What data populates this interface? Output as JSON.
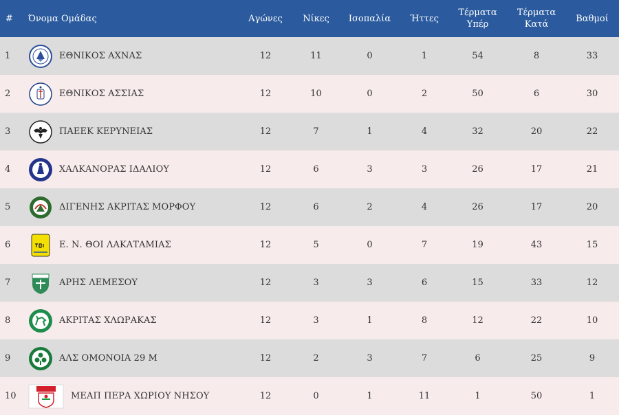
{
  "headers": {
    "rank": "#",
    "team": "Όνομα Ομάδας",
    "played": "Αγώνες",
    "wins": "Νίκες",
    "draws": "Ισοπαλία",
    "losses": "Ήττες",
    "goals_for_line1": "Τέρματα",
    "goals_for_line2": "Υπέρ",
    "goals_against_line1": "Τέρματα",
    "goals_against_line2": "Κατά",
    "points": "Βαθμοί"
  },
  "rows": [
    {
      "rank": "1",
      "team": "ΕΘΝΙΚΟΣ ΑΧΝΑΣ",
      "logo": "ethnikos-achnas-logo",
      "played": "12",
      "wins": "11",
      "draws": "0",
      "losses": "1",
      "gf": "54",
      "ga": "8",
      "pts": "33"
    },
    {
      "rank": "2",
      "team": "ΕΘΝΙΚΟΣ ΑΣΣΙΑΣ",
      "logo": "ethnikos-assias-logo",
      "played": "12",
      "wins": "10",
      "draws": "0",
      "losses": "2",
      "gf": "50",
      "ga": "6",
      "pts": "30"
    },
    {
      "rank": "3",
      "team": "ΠΑΕΕΚ ΚΕΡΥΝΕΙΑΣ",
      "logo": "paeek-logo",
      "played": "12",
      "wins": "7",
      "draws": "1",
      "losses": "4",
      "gf": "32",
      "ga": "20",
      "pts": "22"
    },
    {
      "rank": "4",
      "team": "ΧΑΛΚΑΝΟΡΑΣ ΙΔΑΛΙΟΥ",
      "logo": "chalkanoras-logo",
      "played": "12",
      "wins": "6",
      "draws": "3",
      "losses": "3",
      "gf": "26",
      "ga": "17",
      "pts": "21"
    },
    {
      "rank": "5",
      "team": "ΔΙΓΕΝΗΣ ΑΚΡΙΤΑΣ ΜΟΡΦΟΥ",
      "logo": "digenis-logo",
      "played": "12",
      "wins": "6",
      "draws": "2",
      "losses": "4",
      "gf": "26",
      "ga": "17",
      "pts": "20"
    },
    {
      "rank": "6",
      "team": "Ε. Ν. ΘΟΙ ΛΑΚΑΤΑΜΙΑΣ",
      "logo": "thoi-logo",
      "played": "12",
      "wins": "5",
      "draws": "0",
      "losses": "7",
      "gf": "19",
      "ga": "43",
      "pts": "15"
    },
    {
      "rank": "7",
      "team": "ΑΡΗΣ ΛΕΜΕΣΟΥ",
      "logo": "aris-logo",
      "played": "12",
      "wins": "3",
      "draws": "3",
      "losses": "6",
      "gf": "15",
      "ga": "33",
      "pts": "12"
    },
    {
      "rank": "8",
      "team": "ΑΚΡΙΤΑΣ ΧΛΩΡΑΚΑΣ",
      "logo": "akritas-logo",
      "played": "12",
      "wins": "3",
      "draws": "1",
      "losses": "8",
      "gf": "12",
      "ga": "22",
      "pts": "10"
    },
    {
      "rank": "9",
      "team": "ΑΛΣ ΟΜΟΝΟΙΑ 29 Μ",
      "logo": "omonoia-29m-logo",
      "played": "12",
      "wins": "2",
      "draws": "3",
      "losses": "7",
      "gf": "6",
      "ga": "25",
      "pts": "9"
    },
    {
      "rank": "10",
      "team": "ΜΕΑΠ ΠΕΡΑ ΧΩΡΙΟΥ ΝΗΣΟΥ",
      "logo": "meap-logo",
      "played": "12",
      "wins": "0",
      "draws": "1",
      "losses": "11",
      "gf": "1",
      "ga": "50",
      "pts": "1"
    }
  ],
  "colors": {
    "header_bg": "#2b5b9e",
    "row_odd": "#dcdcdc",
    "row_even": "#f8ebeb"
  }
}
